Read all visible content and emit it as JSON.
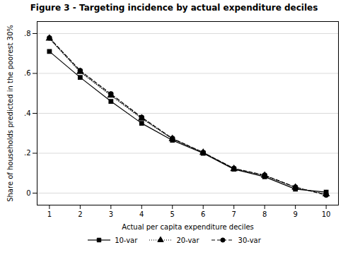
{
  "chart_data": {
    "type": "line",
    "title": "Figure 3 - Targeting incidence by actual expenditure deciles",
    "xlabel": "Actual per capita expenditure deciles",
    "ylabel": "Share of households predicted in the poorest 30%",
    "x": [
      1,
      2,
      3,
      4,
      5,
      6,
      7,
      8,
      9,
      10
    ],
    "series": [
      {
        "name": "10-var",
        "color": "#000000",
        "marker": "square",
        "line_style": "solid",
        "values": [
          0.71,
          0.58,
          0.46,
          0.35,
          0.265,
          0.2,
          0.12,
          0.082,
          0.02,
          0.005
        ]
      },
      {
        "name": "20-var",
        "color": "#000000",
        "marker": "triangle",
        "line_style": "dotted",
        "values": [
          0.775,
          0.608,
          0.49,
          0.375,
          0.272,
          0.203,
          0.122,
          0.088,
          0.028,
          -0.005
        ]
      },
      {
        "name": "30-var",
        "color": "#000000",
        "marker": "circle",
        "line_style": "dashed",
        "values": [
          0.778,
          0.614,
          0.497,
          0.38,
          0.274,
          0.204,
          0.124,
          0.09,
          0.03,
          -0.01
        ]
      }
    ],
    "xlim": [
      0.6,
      10.4
    ],
    "xticks": [
      1,
      2,
      3,
      4,
      5,
      6,
      7,
      8,
      9,
      10
    ],
    "ylim": [
      -0.06,
      0.86
    ],
    "yticks": [
      0,
      {
        "value": 0.2,
        "label": ".2"
      },
      {
        "value": 0.4,
        "label": ".4"
      },
      {
        "value": 0.6,
        "label": ".6"
      },
      {
        "value": 0.8,
        "label": ".8"
      }
    ],
    "grid": true,
    "legend": "bottom"
  }
}
